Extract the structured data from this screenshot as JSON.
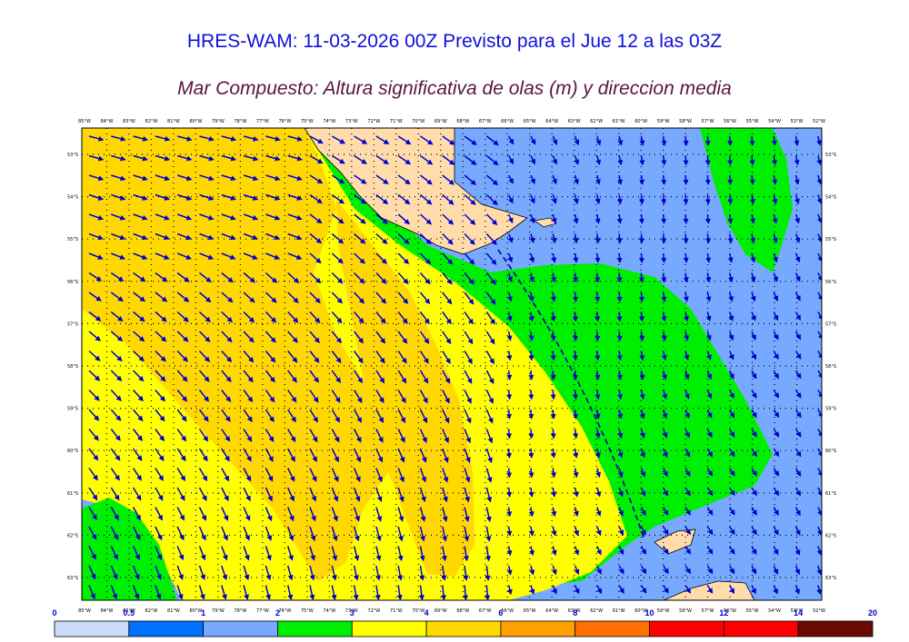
{
  "title": "HRES-WAM: 11-03-2026 00Z Previsto para el Jue 12 a las 03Z",
  "subtitle": "Mar Compuesto: Altura significativa de olas (m) y direccion media",
  "map": {
    "lon_labels": [
      "85°W",
      "84°W",
      "83°W",
      "82°W",
      "81°W",
      "80°W",
      "79°W",
      "78°W",
      "77°W",
      "76°W",
      "75°W",
      "74°W",
      "73°W",
      "72°W",
      "71°W",
      "70°W",
      "69°W",
      "68°W",
      "67°W",
      "66°W",
      "65°W",
      "64°W",
      "63°W",
      "62°W",
      "61°W",
      "60°W",
      "59°W",
      "58°W",
      "57°W",
      "56°W",
      "55°W",
      "54°W",
      "53°W",
      "52°W"
    ],
    "lat_labels": [
      "53°S",
      "54°S",
      "55°S",
      "56°S",
      "57°S",
      "58°S",
      "59°S",
      "60°S",
      "61°S",
      "62°S",
      "63°S"
    ],
    "colors": {
      "ocean_low": "#77aaff",
      "green": "#00ee00",
      "yellow": "#ffff00",
      "gold": "#ffd800",
      "land": "#ffdcaa",
      "arrow": "#0000cc"
    }
  },
  "colorbar": {
    "labels": [
      "0",
      "0.5",
      "1",
      "2",
      "3",
      "4",
      "6",
      "8",
      "10",
      "12",
      "14",
      "20"
    ],
    "colors": [
      "#c8dcf8",
      "#0070ff",
      "#77aaff",
      "#00ee00",
      "#ffff00",
      "#ffd800",
      "#ffa000",
      "#ff7000",
      "#ff0000",
      "#ff0000",
      "#6a0a00",
      "#333333"
    ]
  }
}
